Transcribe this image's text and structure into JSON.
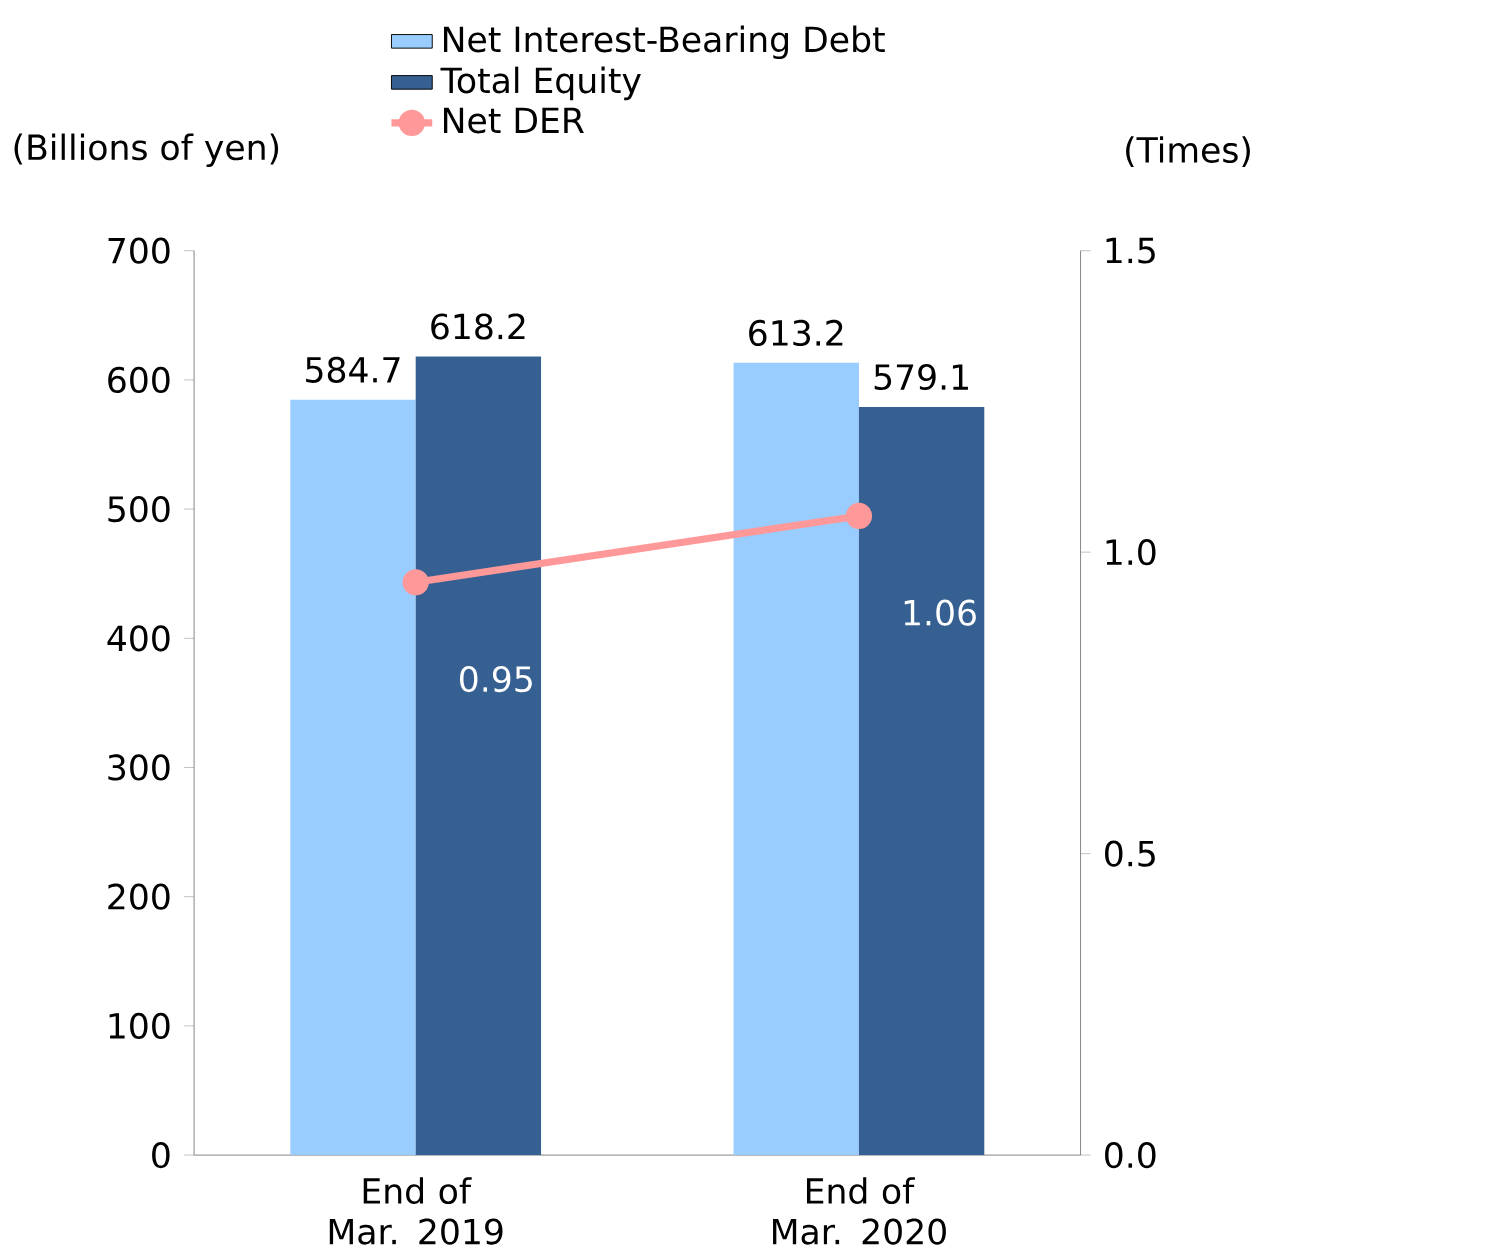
{
  "chart_data": {
    "type": "bar",
    "ylabel": "(Billions of yen)",
    "y2label": "(Times)",
    "categories": [
      "End of Mar. 2019",
      "End of Mar. 2020"
    ],
    "series": [
      {
        "name": "Net Interest-Bearing Debt",
        "color": "#99ccff",
        "values": [
          584.7,
          613.2
        ]
      },
      {
        "name": "Total Equity",
        "color": "#366092",
        "values": [
          618.2,
          579.1
        ]
      },
      {
        "name": "Net DER",
        "type": "line",
        "axis": "y2",
        "color": "#ff9999",
        "values": [
          0.95,
          1.06
        ]
      }
    ],
    "ylim": [
      0,
      700
    ],
    "yticks": [
      0,
      100,
      200,
      300,
      400,
      500,
      600,
      700
    ],
    "y2lim": [
      0,
      1.5
    ],
    "y2ticks": [
      {
        "value": 0,
        "label": "0.0"
      },
      {
        "value": 0.5,
        "label": "0.5"
      },
      {
        "value": 1,
        "label": "1.0"
      },
      {
        "value": 1.5,
        "label": "1.5"
      }
    ],
    "data_labels": true,
    "legend": "top",
    "grid": false,
    "marker": "circle"
  }
}
